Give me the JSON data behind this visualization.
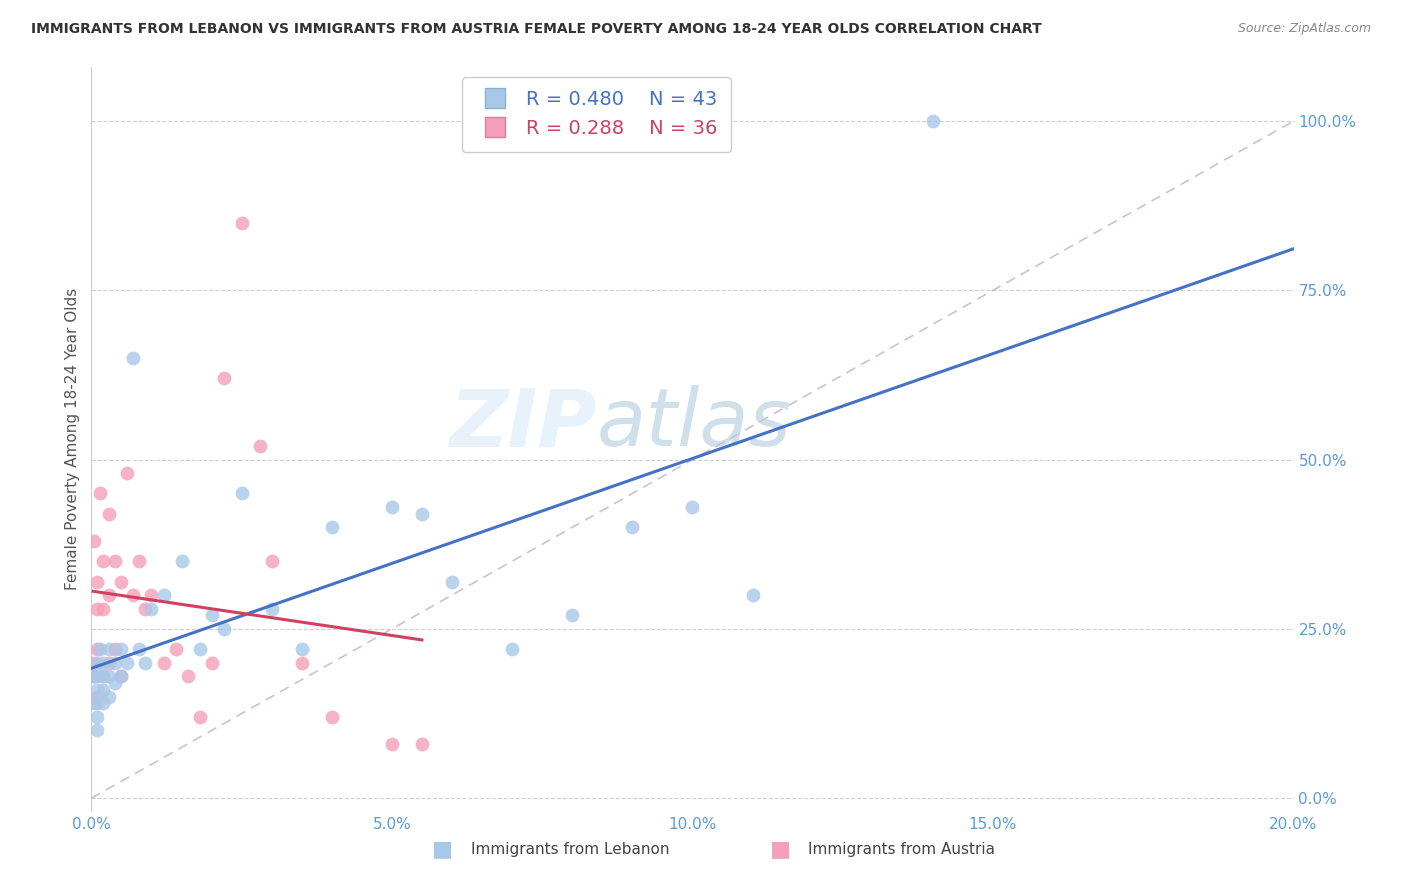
{
  "title": "IMMIGRANTS FROM LEBANON VS IMMIGRANTS FROM AUSTRIA FEMALE POVERTY AMONG 18-24 YEAR OLDS CORRELATION CHART",
  "source": "Source: ZipAtlas.com",
  "ylabel": "Female Poverty Among 18-24 Year Olds",
  "R_lebanon": 0.48,
  "N_lebanon": 43,
  "R_austria": 0.288,
  "N_austria": 36,
  "color_lebanon": "#a8c8e8",
  "color_austria": "#f4a0b8",
  "color_line_lebanon": "#4472c4",
  "color_line_austria": "#d04060",
  "color_right_axis": "#5b9bd5",
  "color_title": "#333333",
  "background_color": "#ffffff",
  "xlim": [
    0.0,
    0.2
  ],
  "ylim": [
    -0.02,
    1.08
  ],
  "yticks_right": [
    0.0,
    0.25,
    0.5,
    0.75,
    1.0
  ],
  "xticks": [
    0.0,
    0.05,
    0.1,
    0.15,
    0.2
  ],
  "watermark": "ZIPatlas",
  "marker_size": 100,
  "lebanon_x": [
    0.0005,
    0.0005,
    0.001,
    0.001,
    0.001,
    0.001,
    0.001,
    0.001,
    0.0015,
    0.002,
    0.002,
    0.002,
    0.002,
    0.003,
    0.003,
    0.003,
    0.004,
    0.004,
    0.005,
    0.005,
    0.006,
    0.007,
    0.008,
    0.009,
    0.01,
    0.012,
    0.015,
    0.018,
    0.02,
    0.022,
    0.025,
    0.03,
    0.035,
    0.04,
    0.05,
    0.055,
    0.06,
    0.07,
    0.08,
    0.09,
    0.1,
    0.11,
    0.14
  ],
  "lebanon_y": [
    0.18,
    0.14,
    0.2,
    0.18,
    0.16,
    0.14,
    0.12,
    0.1,
    0.22,
    0.2,
    0.18,
    0.16,
    0.14,
    0.22,
    0.18,
    0.15,
    0.2,
    0.17,
    0.22,
    0.18,
    0.2,
    0.65,
    0.22,
    0.2,
    0.28,
    0.3,
    0.35,
    0.22,
    0.27,
    0.25,
    0.45,
    0.28,
    0.22,
    0.4,
    0.43,
    0.42,
    0.32,
    0.22,
    0.27,
    0.4,
    0.43,
    0.3,
    1.0
  ],
  "austria_x": [
    0.0003,
    0.0005,
    0.0005,
    0.001,
    0.001,
    0.001,
    0.001,
    0.0015,
    0.002,
    0.002,
    0.002,
    0.003,
    0.003,
    0.003,
    0.004,
    0.004,
    0.005,
    0.005,
    0.006,
    0.007,
    0.008,
    0.009,
    0.01,
    0.012,
    0.014,
    0.016,
    0.018,
    0.02,
    0.022,
    0.025,
    0.028,
    0.03,
    0.035,
    0.04,
    0.05,
    0.055
  ],
  "austria_y": [
    0.2,
    0.38,
    0.18,
    0.32,
    0.28,
    0.22,
    0.15,
    0.45,
    0.35,
    0.28,
    0.18,
    0.42,
    0.3,
    0.2,
    0.35,
    0.22,
    0.32,
    0.18,
    0.48,
    0.3,
    0.35,
    0.28,
    0.3,
    0.2,
    0.22,
    0.18,
    0.12,
    0.2,
    0.62,
    0.85,
    0.52,
    0.35,
    0.2,
    0.12,
    0.08,
    0.08
  ],
  "diag_color": "#c8a0b0"
}
